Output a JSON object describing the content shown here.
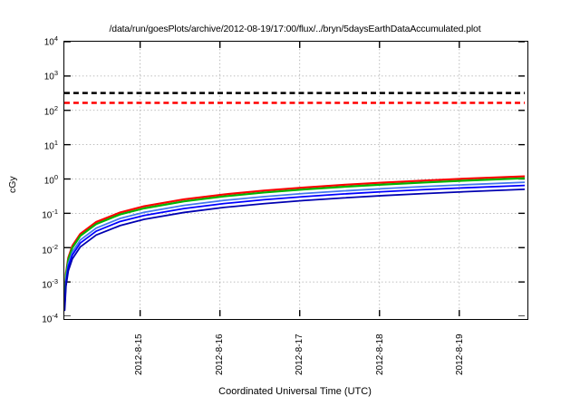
{
  "chart_data": {
    "type": "line",
    "title": "/data/run/goesPlots/archive/2012-08-19/17:00/flux/../bryn/5daysEarthDataAccumulated.plot",
    "ylabel": "cGy",
    "xlabel": "Coordinated Universal Time (UTC)",
    "y_scale": "log10",
    "ylim": [
      0.0001,
      10000
    ],
    "y_tick_base": "10",
    "y_tick_exponents": [
      4,
      3,
      2,
      1,
      0,
      -1,
      -2,
      -3,
      -4
    ],
    "grid": true,
    "legend": "none",
    "x_total_days": 5.77,
    "x_ticks": [
      {
        "label": "2012-8-15",
        "t": 0.95
      },
      {
        "label": "2012-8-16",
        "t": 1.95
      },
      {
        "label": "2012-8-17",
        "t": 2.95
      },
      {
        "label": "2012-8-18",
        "t": 3.95
      },
      {
        "label": "2012-8-19",
        "t": 4.95
      }
    ],
    "thresholds": [
      {
        "name": "upper-limit-dashed-black",
        "value": 320,
        "color": "#000000"
      },
      {
        "name": "lower-limit-dashed-red",
        "value": 165,
        "color": "#ff0000"
      }
    ],
    "t_days": [
      0.005,
      0.02,
      0.05,
      0.1,
      0.2,
      0.4,
      0.7,
      1.0,
      1.5,
      2.0,
      2.5,
      3.0,
      3.5,
      4.0,
      4.5,
      5.0,
      5.77
    ],
    "series": [
      {
        "name": "red-accumulated-dose",
        "color": "#ff0000",
        "width": 2.2,
        "values": [
          0.00036,
          0.0018,
          0.0051,
          0.0113,
          0.0251,
          0.0558,
          0.106,
          0.16,
          0.255,
          0.355,
          0.459,
          0.565,
          0.675,
          0.787,
          0.9,
          1.017,
          1.2
        ]
      },
      {
        "name": "green-accumulated-dose",
        "color": "#00b400",
        "width": 2.2,
        "values": [
          0.00032,
          0.0016,
          0.0045,
          0.0099,
          0.022,
          0.0488,
          0.093,
          0.14,
          0.223,
          0.311,
          0.402,
          0.494,
          0.591,
          0.689,
          0.788,
          0.89,
          1.05
        ]
      },
      {
        "name": "lightblue-accumulated-dose",
        "color": "#4477ee",
        "width": 1.8,
        "values": [
          0.00024,
          0.0012,
          0.0034,
          0.0075,
          0.0167,
          0.0372,
          0.071,
          0.107,
          0.17,
          0.237,
          0.306,
          0.377,
          0.45,
          0.525,
          0.6,
          0.678,
          0.8
        ]
      },
      {
        "name": "blue-accumulated-dose",
        "color": "#0000ff",
        "width": 1.8,
        "values": [
          0.0002,
          0.001,
          0.0028,
          0.0061,
          0.0136,
          0.0302,
          0.058,
          0.087,
          0.138,
          0.192,
          0.249,
          0.306,
          0.366,
          0.427,
          0.488,
          0.551,
          0.65
        ]
      },
      {
        "name": "darkblue-accumulated-dose",
        "color": "#0000b0",
        "width": 1.8,
        "values": [
          0.00015,
          0.00075,
          0.0021,
          0.0047,
          0.0105,
          0.0233,
          0.044,
          0.067,
          0.106,
          0.148,
          0.191,
          0.236,
          0.281,
          0.328,
          0.375,
          0.424,
          0.5
        ]
      }
    ],
    "style": {
      "grid_color": "#a8a8a8",
      "frame_color": "#000000",
      "background": "#ffffff"
    }
  }
}
